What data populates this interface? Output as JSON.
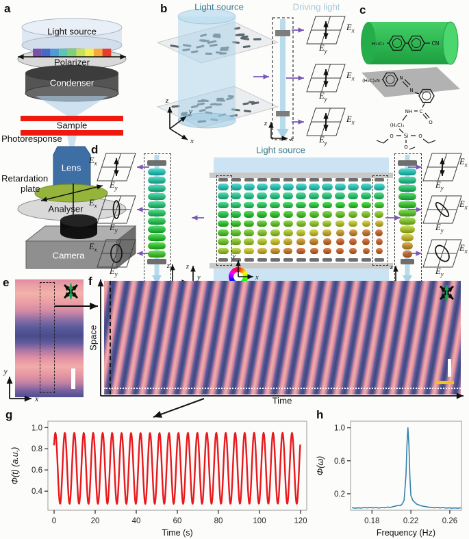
{
  "panels": {
    "a": {
      "letter": "a",
      "labels": {
        "light_source": "Light source",
        "polarizer": "Polarizer",
        "condenser": "Condenser",
        "sample": "Sample",
        "photoresponse": "Photoresponse",
        "lens": "Lens",
        "retardation_line1": "Retardation",
        "retardation_line2": "plate",
        "analyser": "Analyser",
        "camera": "Camera"
      }
    },
    "b": {
      "letter": "b",
      "light_source_title": "Light source",
      "driving_light_title": "Driving light"
    },
    "c": {
      "letter": "c",
      "labels": {
        "pentyl": "H₁₁C₅",
        "nitrile": "CN",
        "dimethylamino": "(H₃C)₂N",
        "n1": "N",
        "n2": "N",
        "nh": "NH",
        "carbonyl_c": "C",
        "carbonyl_o": "O",
        "propylene": "(H₂C)₃",
        "si": "Si",
        "o_left": "O",
        "o_right": "O",
        "o_bottom": "O"
      }
    },
    "d": {
      "letter": "d",
      "title": "Light source"
    },
    "e": {
      "letter": "e"
    },
    "f": {
      "letter": "f",
      "ylabel": "Space",
      "xlabel": "Time"
    },
    "g": {
      "letter": "g"
    },
    "h": {
      "letter": "h"
    }
  },
  "axis_letters": {
    "x": "x",
    "y": "y",
    "z": "z",
    "E": "E"
  },
  "colors": {
    "driving_beam": "#b9dcec",
    "teal_text": "#39798c",
    "driving_text": "#a5c8da",
    "purple_arrow": "#7a57b5",
    "signal_red": "#e8191c",
    "spectrum_blue": "#3581ab",
    "lens_blue": "#3d6fa5",
    "retardation_green": "#96b43c",
    "green_arrow": "#18a84c",
    "sample_red": "#ee1a10",
    "yellow_scalebar": "#f2c21c"
  },
  "chart_data": [
    {
      "id": "g",
      "type": "line",
      "title": "",
      "xlabel": "Time (s)",
      "ylabel": "Φ(t) (a.u.)",
      "xlim": [
        -3,
        123
      ],
      "ylim": [
        0.22,
        1.06
      ],
      "xticks": [
        0,
        20,
        40,
        60,
        80,
        100,
        120
      ],
      "xtick_labels": [
        "0",
        "20",
        "40",
        "60",
        "80",
        "100",
        "120"
      ],
      "yticks": [
        0.4,
        0.6,
        0.8,
        1.0
      ],
      "ytick_labels": [
        "0.4",
        "0.6",
        "0.8",
        "1.0"
      ],
      "color": "#e8191c",
      "legend": "none",
      "grid": false,
      "signal": {
        "description": "periodic transmitted-intensity oscillation",
        "baseline": 0.615,
        "amplitude": 0.335,
        "frequency_hz": 0.217,
        "phase_rad": 0.73,
        "t_start": 0,
        "t_end": 120,
        "min": 0.28,
        "max": 0.95
      }
    },
    {
      "id": "h",
      "type": "line",
      "title": "",
      "xlabel": "Frequency (Hz)",
      "ylabel": "Φ(ω)",
      "xlim": [
        0.158,
        0.272
      ],
      "ylim": [
        0,
        1.08
      ],
      "xticks": [
        0.18,
        0.22,
        0.26
      ],
      "xtick_labels": [
        "0.18",
        "0.22",
        "0.26"
      ],
      "yticks": [
        0.2,
        0.6,
        1.0
      ],
      "ytick_labels": [
        "0.2",
        "0.6",
        "1.0"
      ],
      "color": "#3581ab",
      "legend": "none",
      "grid": false,
      "peak_frequency_hz": 0.217,
      "points": [
        [
          0.16,
          0.03
        ],
        [
          0.163,
          0.024
        ],
        [
          0.166,
          0.03
        ],
        [
          0.169,
          0.026
        ],
        [
          0.172,
          0.032
        ],
        [
          0.175,
          0.028
        ],
        [
          0.178,
          0.034
        ],
        [
          0.181,
          0.028
        ],
        [
          0.184,
          0.033
        ],
        [
          0.187,
          0.027
        ],
        [
          0.19,
          0.033
        ],
        [
          0.193,
          0.03
        ],
        [
          0.196,
          0.038
        ],
        [
          0.199,
          0.034
        ],
        [
          0.202,
          0.045
        ],
        [
          0.205,
          0.052
        ],
        [
          0.207,
          0.06
        ],
        [
          0.209,
          0.055
        ],
        [
          0.211,
          0.075
        ],
        [
          0.213,
          0.12
        ],
        [
          0.215,
          0.43
        ],
        [
          0.216,
          0.8
        ],
        [
          0.217,
          1.0
        ],
        [
          0.218,
          0.78
        ],
        [
          0.219,
          0.4
        ],
        [
          0.22,
          0.18
        ],
        [
          0.222,
          0.12
        ],
        [
          0.224,
          0.095
        ],
        [
          0.226,
          0.075
        ],
        [
          0.229,
          0.06
        ],
        [
          0.232,
          0.05
        ],
        [
          0.235,
          0.044
        ],
        [
          0.238,
          0.038
        ],
        [
          0.241,
          0.034
        ],
        [
          0.244,
          0.03
        ],
        [
          0.247,
          0.034
        ],
        [
          0.25,
          0.028
        ],
        [
          0.253,
          0.032
        ],
        [
          0.256,
          0.026
        ],
        [
          0.259,
          0.03
        ],
        [
          0.262,
          0.024
        ],
        [
          0.265,
          0.028
        ],
        [
          0.268,
          0.024
        ],
        [
          0.271,
          0.028
        ]
      ]
    }
  ]
}
